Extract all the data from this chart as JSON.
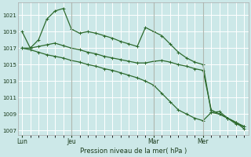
{
  "background_color": "#cce8e8",
  "grid_color": "#ffffff",
  "line_color": "#2d6a2d",
  "marker_color": "#2d6a2d",
  "xlabel": "Pression niveau de la mer( hPa )",
  "ylim": [
    1006.5,
    1022.5
  ],
  "yticks": [
    1007,
    1009,
    1011,
    1013,
    1015,
    1017,
    1019,
    1021
  ],
  "day_labels": [
    "Lun",
    "Jeu",
    "Mar",
    "Mer"
  ],
  "day_positions": [
    0,
    6,
    16,
    22
  ],
  "vline_positions": [
    6,
    16,
    22
  ],
  "n_points": 28,
  "s1": [
    1019,
    1017,
    1018,
    1020.5,
    1021.5,
    1021.8,
    1019.3,
    1018.8,
    1019.0,
    1018.8,
    1018.5,
    1018.2,
    1017.8,
    1017.5,
    1017.2,
    1019.5,
    1019.0,
    1018.5,
    1017.5,
    1016.5,
    1015.8,
    1015.3,
    1015.0,
    1009.2,
    1009.0,
    1008.5,
    1008.0,
    1007.5
  ],
  "s2": [
    1017.0,
    1017.0,
    1017.2,
    1017.4,
    1017.6,
    1017.3,
    1017.0,
    1016.8,
    1016.5,
    1016.3,
    1016.0,
    1015.8,
    1015.6,
    1015.4,
    1015.2,
    1015.2,
    1015.4,
    1015.5,
    1015.3,
    1015.0,
    1014.8,
    1014.5,
    1014.3,
    1009.5,
    1009.0,
    1008.5,
    1008.0,
    1007.2
  ],
  "s3": [
    1017.0,
    1016.8,
    1016.5,
    1016.2,
    1016.0,
    1015.8,
    1015.5,
    1015.3,
    1015.0,
    1014.8,
    1014.5,
    1014.3,
    1014.0,
    1013.7,
    1013.4,
    1013.0,
    1012.5,
    1011.5,
    1010.5,
    1009.5,
    1009.0,
    1008.5,
    1008.2,
    1009.2,
    1009.3,
    1008.5,
    1007.8,
    1007.5
  ]
}
